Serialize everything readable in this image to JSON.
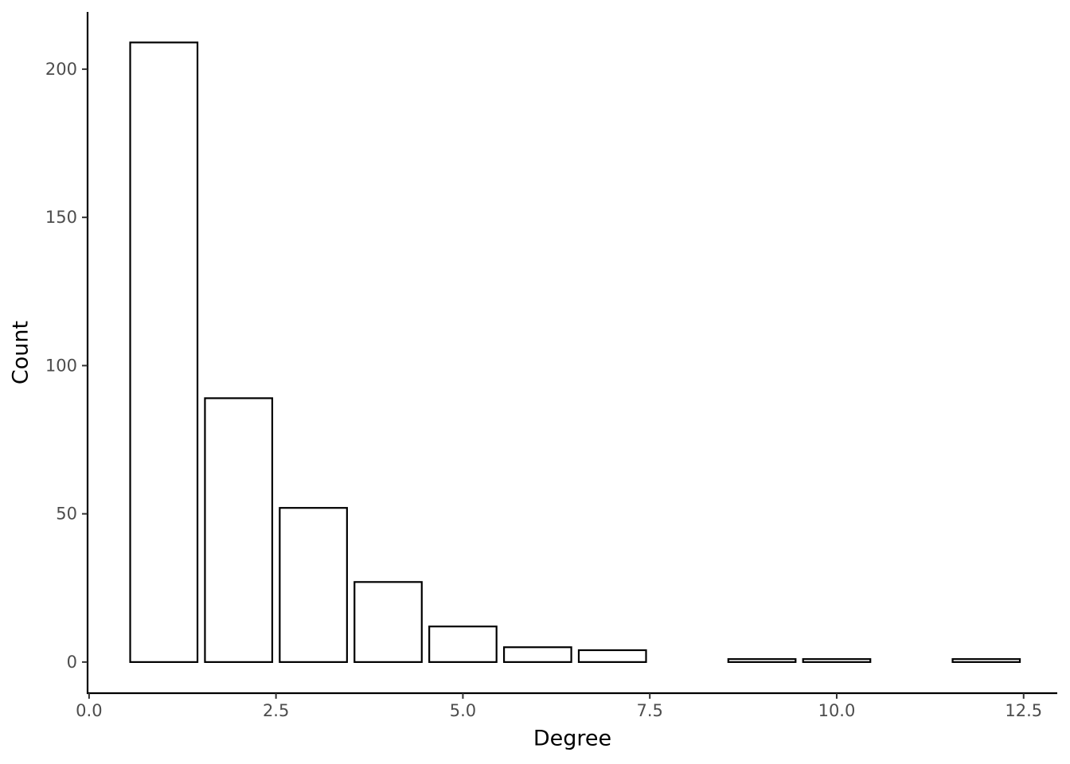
{
  "chart_data": {
    "type": "bar",
    "x_label": "Degree",
    "y_label": "Count",
    "x": [
      1,
      2,
      3,
      4,
      5,
      6,
      7,
      9,
      10,
      12
    ],
    "values": [
      209,
      89,
      52,
      27,
      12,
      5,
      4,
      1,
      1,
      1
    ],
    "color": "#ffffff",
    "edgecolor": "#000000",
    "xlim": [
      -0.02,
      12.95
    ],
    "ylim": [
      -10.5,
      219.3
    ],
    "xticks": [
      {
        "value": 0,
        "label": "0.0"
      },
      2.5,
      {
        "value": 5,
        "label": "5.0"
      },
      7.5,
      {
        "value": 10,
        "label": "10.0"
      },
      12.5
    ],
    "yticks": [
      0,
      50,
      100,
      150,
      200
    ],
    "grid": false
  }
}
